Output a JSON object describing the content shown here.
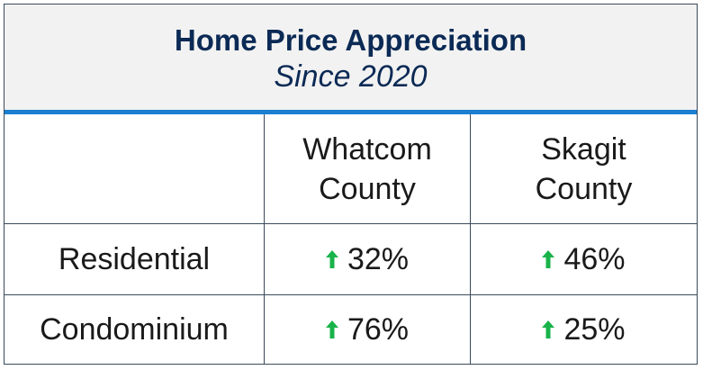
{
  "header": {
    "title": "Home Price Appreciation",
    "subtitle": "Since 2020"
  },
  "columns": [
    {
      "line1": "Whatcom",
      "line2": "County"
    },
    {
      "line1": "Skagit",
      "line2": "County"
    }
  ],
  "rows": [
    {
      "label": "Residential",
      "values": [
        "32%",
        "46%"
      ]
    },
    {
      "label": "Condominium",
      "values": [
        "76%",
        "25%"
      ]
    }
  ],
  "icons": {
    "increase": "up-arrow-icon"
  },
  "colors": {
    "title": "#0b2a55",
    "accent": "#1a7fd0",
    "increase": "#19b34a",
    "header_bg": "#f2f2f2"
  }
}
